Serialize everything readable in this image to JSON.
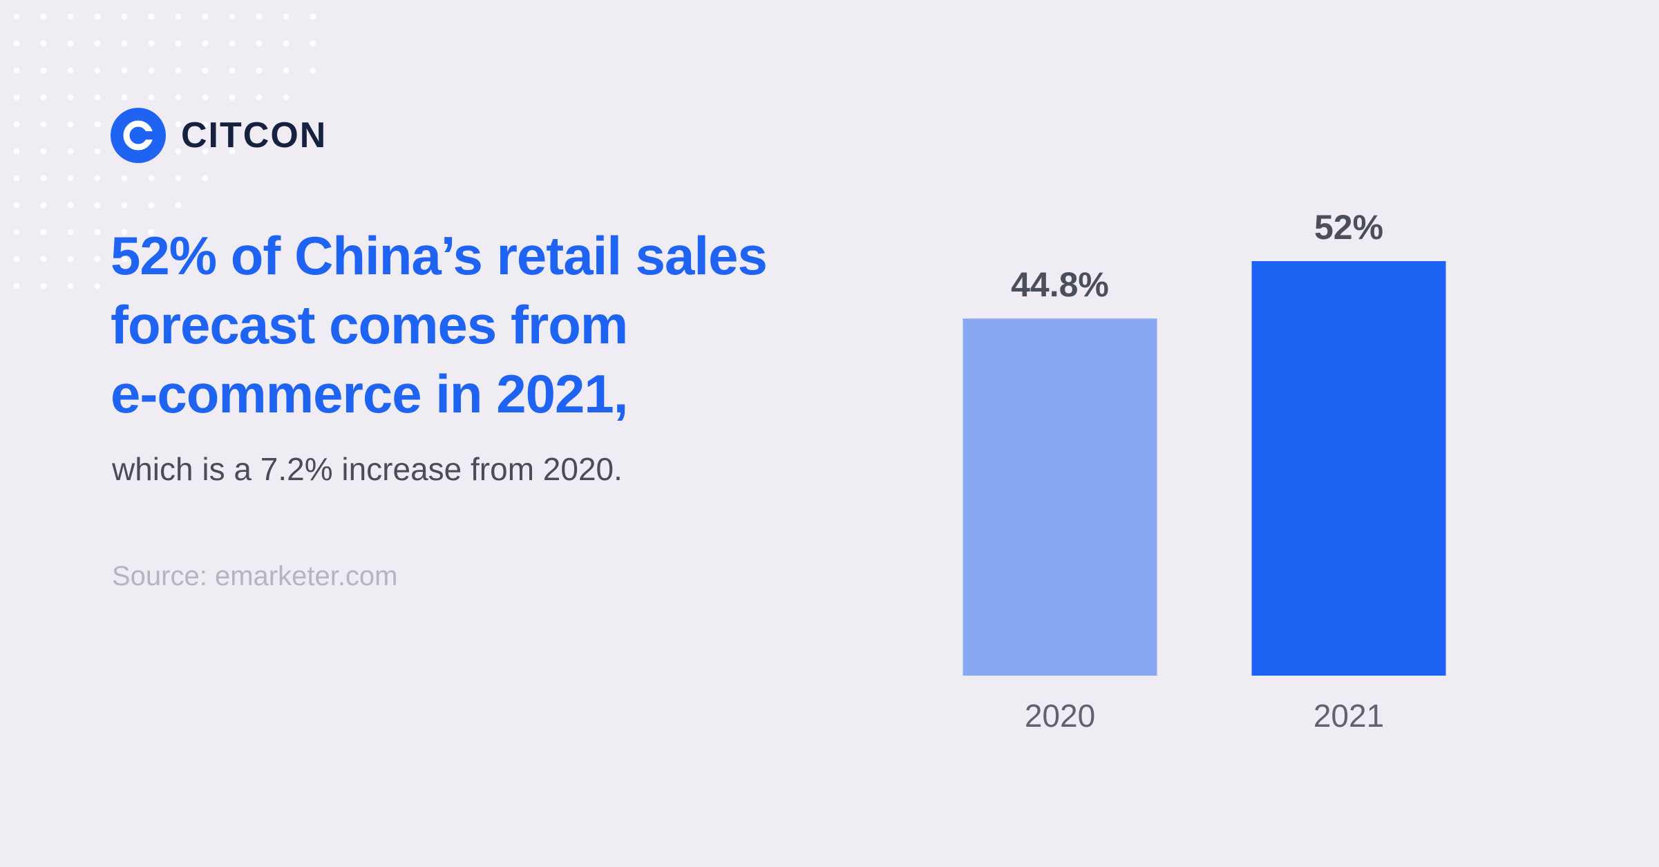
{
  "brand": {
    "name": "CITCON"
  },
  "headline": {
    "line1": "52% of China’s retail sales",
    "line2": "forecast comes from",
    "line3": "e-commerce in 2021,"
  },
  "subtext": "which is a 7.2% increase from 2020.",
  "source": "Source: emarketer.com",
  "colors": {
    "background": "#efedf3",
    "accent": "#1f63f2",
    "bar_2020": "#89a8f3",
    "bar_2021": "#1d63f3",
    "value_label": "#4b4f5c",
    "category_label": "#5f6270"
  },
  "chart_data": {
    "type": "bar",
    "title": "",
    "xlabel": "",
    "ylabel": "",
    "categories": [
      "2020",
      "2021"
    ],
    "values": [
      44.8,
      52
    ],
    "value_labels": [
      "44.8%",
      "52%"
    ],
    "colors": [
      "#89a8f3",
      "#1d63f3"
    ],
    "ylim": [
      0,
      52
    ],
    "grid": false,
    "legend": "none"
  }
}
